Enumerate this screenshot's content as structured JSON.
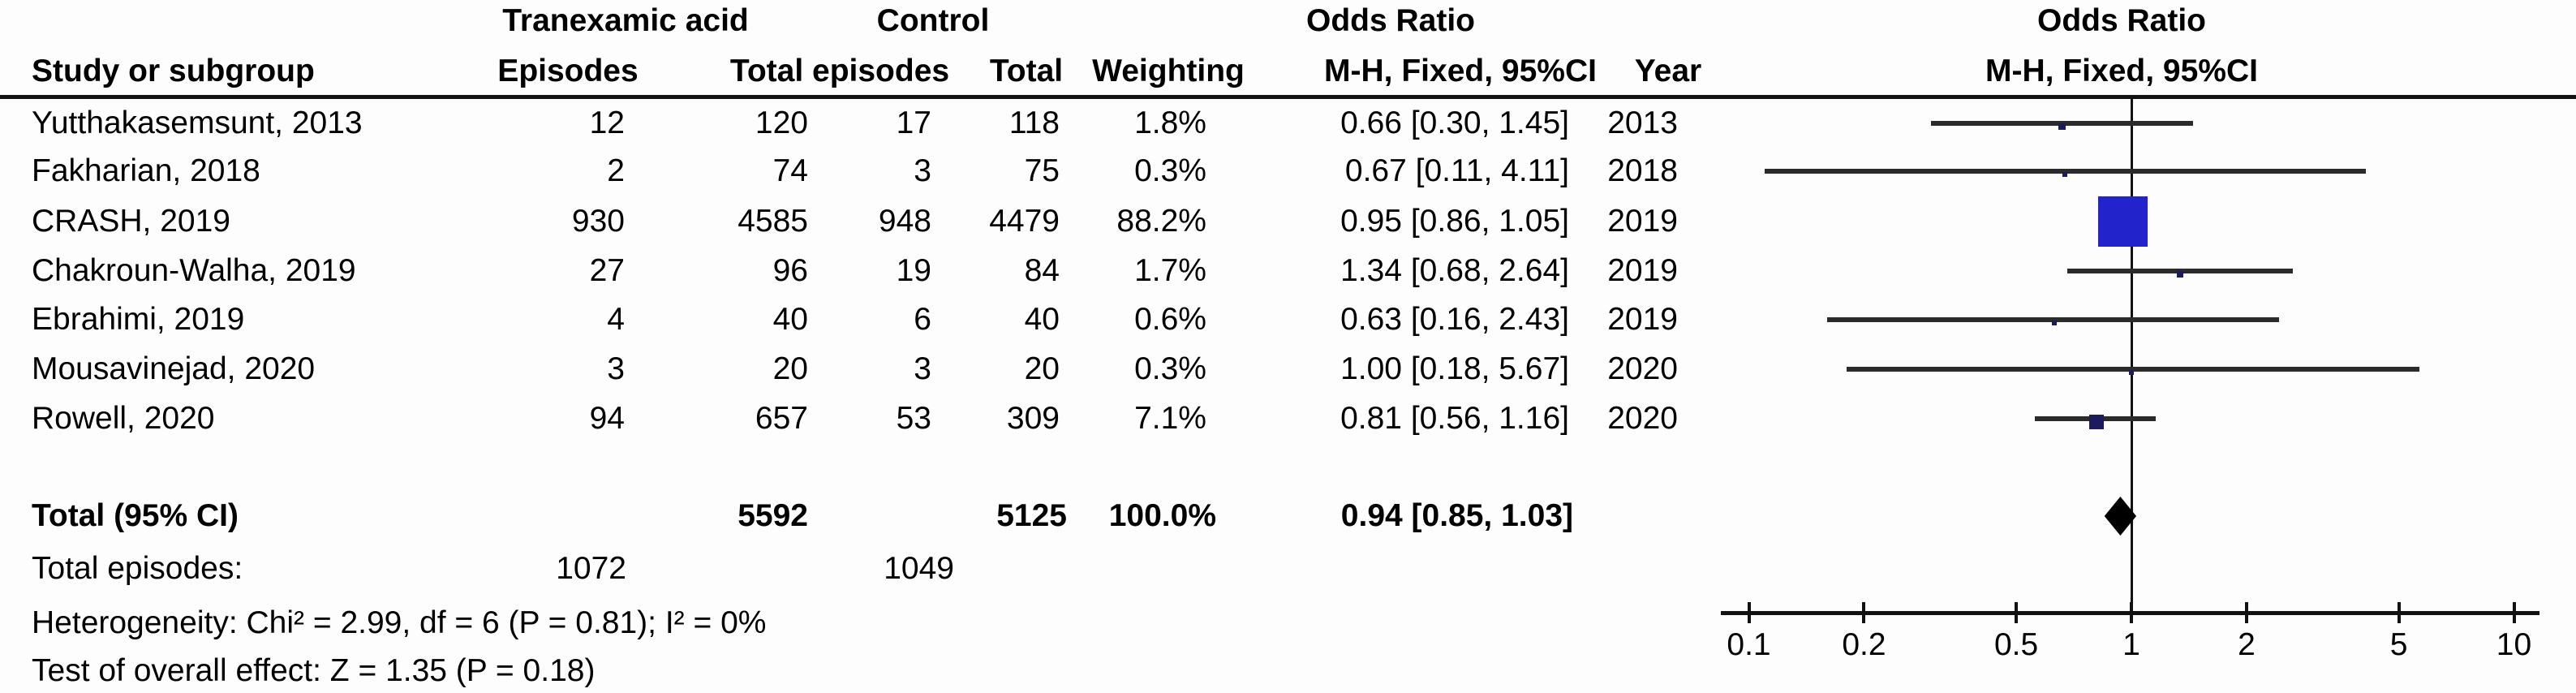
{
  "table": {
    "group_headers": {
      "treatment": "Tranexamic acid",
      "control": "Control",
      "odds_ratio": "Odds Ratio"
    },
    "col_headers": {
      "study": "Study or subgroup",
      "episodes": "Episodes",
      "total_episodes": "Total episodes",
      "total": "Total",
      "weighting": "Weighting",
      "mh_ci": "M-H, Fixed, 95%CI",
      "year": "Year"
    },
    "rows": [
      {
        "study": "Yutthakasemsunt, 2013",
        "txa_episodes": "12",
        "txa_total": "120",
        "ctrl_episodes": "17",
        "ctrl_total": "118",
        "weight": "1.8%",
        "ci": "0.66 [0.30, 1.45]",
        "year": "2013"
      },
      {
        "study": "Fakharian, 2018",
        "txa_episodes": "2",
        "txa_total": "74",
        "ctrl_episodes": "3",
        "ctrl_total": "75",
        "weight": "0.3%",
        "ci": "0.67 [0.11, 4.11]",
        "year": "2018"
      },
      {
        "study": "CRASH, 2019",
        "txa_episodes": "930",
        "txa_total": "4585",
        "ctrl_episodes": "948",
        "ctrl_total": "4479",
        "weight": "88.2%",
        "ci": "0.95 [0.86, 1.05]",
        "year": "2019"
      },
      {
        "study": "Chakroun-Walha, 2019",
        "txa_episodes": "27",
        "txa_total": "96",
        "ctrl_episodes": "19",
        "ctrl_total": "84",
        "weight": "1.7%",
        "ci": "1.34 [0.68, 2.64]",
        "year": "2019"
      },
      {
        "study": "Ebrahimi, 2019",
        "txa_episodes": "4",
        "txa_total": "40",
        "ctrl_episodes": "6",
        "ctrl_total": "40",
        "weight": "0.6%",
        "ci": "0.63 [0.16, 2.43]",
        "year": "2019"
      },
      {
        "study": "Mousavinejad, 2020",
        "txa_episodes": "3",
        "txa_total": "20",
        "ctrl_episodes": "3",
        "ctrl_total": "20",
        "weight": "0.3%",
        "ci": "1.00 [0.18, 5.67]",
        "year": "2020"
      },
      {
        "study": "Rowell, 2020",
        "txa_episodes": "94",
        "txa_total": "657",
        "ctrl_episodes": "53",
        "ctrl_total": "309",
        "weight": "7.1%",
        "ci": "0.81 [0.56, 1.16]",
        "year": "2020"
      }
    ],
    "total_row": {
      "label": "Total (95% CI)",
      "txa_total": "5592",
      "ctrl_total": "5125",
      "weight": "100.0%",
      "ci": "0.94 [0.85, 1.03]"
    },
    "total_episodes_row": {
      "label": "Total episodes:",
      "txa": "1072",
      "ctrl": "1049"
    },
    "heterogeneity": "Heterogeneity: Chi² = 2.99, df = 6 (P = 0.81); I² = 0%",
    "overall_effect": "Test of overall effect: Z = 1.35 (P = 0.18)"
  },
  "plot_header": {
    "line1": "Odds Ratio",
    "line2": "M-H, Fixed, 95%CI"
  },
  "chart_data": {
    "type": "forest",
    "effect_measure": "Odds Ratio",
    "model": "M-H, Fixed, 95%CI",
    "x_scale": "log",
    "null_line": 1,
    "axis_ticks": [
      {
        "v": 0.1,
        "label": "0.1"
      },
      {
        "v": 0.2,
        "label": "0.2"
      },
      {
        "v": 0.5,
        "label": "0.5"
      },
      {
        "v": 1,
        "label": "1"
      },
      {
        "v": 2,
        "label": "2"
      },
      {
        "v": 5,
        "label": "5"
      },
      {
        "v": 10,
        "label": "10"
      }
    ],
    "studies": [
      {
        "name": "Yutthakasemsunt, 2013",
        "year": 2013,
        "or": 0.66,
        "ci_low": 0.3,
        "ci_high": 1.45,
        "weight_pct": 1.8
      },
      {
        "name": "Fakharian, 2018",
        "year": 2018,
        "or": 0.67,
        "ci_low": 0.11,
        "ci_high": 4.11,
        "weight_pct": 0.3
      },
      {
        "name": "CRASH, 2019",
        "year": 2019,
        "or": 0.95,
        "ci_low": 0.86,
        "ci_high": 1.05,
        "weight_pct": 88.2
      },
      {
        "name": "Chakroun-Walha, 2019",
        "year": 2019,
        "or": 1.34,
        "ci_low": 0.68,
        "ci_high": 2.64,
        "weight_pct": 1.7
      },
      {
        "name": "Ebrahimi, 2019",
        "year": 2019,
        "or": 0.63,
        "ci_low": 0.16,
        "ci_high": 2.43,
        "weight_pct": 0.6
      },
      {
        "name": "Mousavinejad, 2020",
        "year": 2020,
        "or": 1.0,
        "ci_low": 0.18,
        "ci_high": 5.67,
        "weight_pct": 0.3
      },
      {
        "name": "Rowell, 2020",
        "year": 2020,
        "or": 0.81,
        "ci_low": 0.56,
        "ci_high": 1.16,
        "weight_pct": 7.1
      }
    ],
    "total": {
      "or": 0.94,
      "ci_low": 0.85,
      "ci_high": 1.03,
      "weight_pct": 100.0
    },
    "colors": {
      "large_marker": "#2323cc",
      "small_marker": "#1b1b5e",
      "ci_line": "#2b2b2b",
      "diamond": "#000000",
      "axis": "#111111"
    }
  }
}
